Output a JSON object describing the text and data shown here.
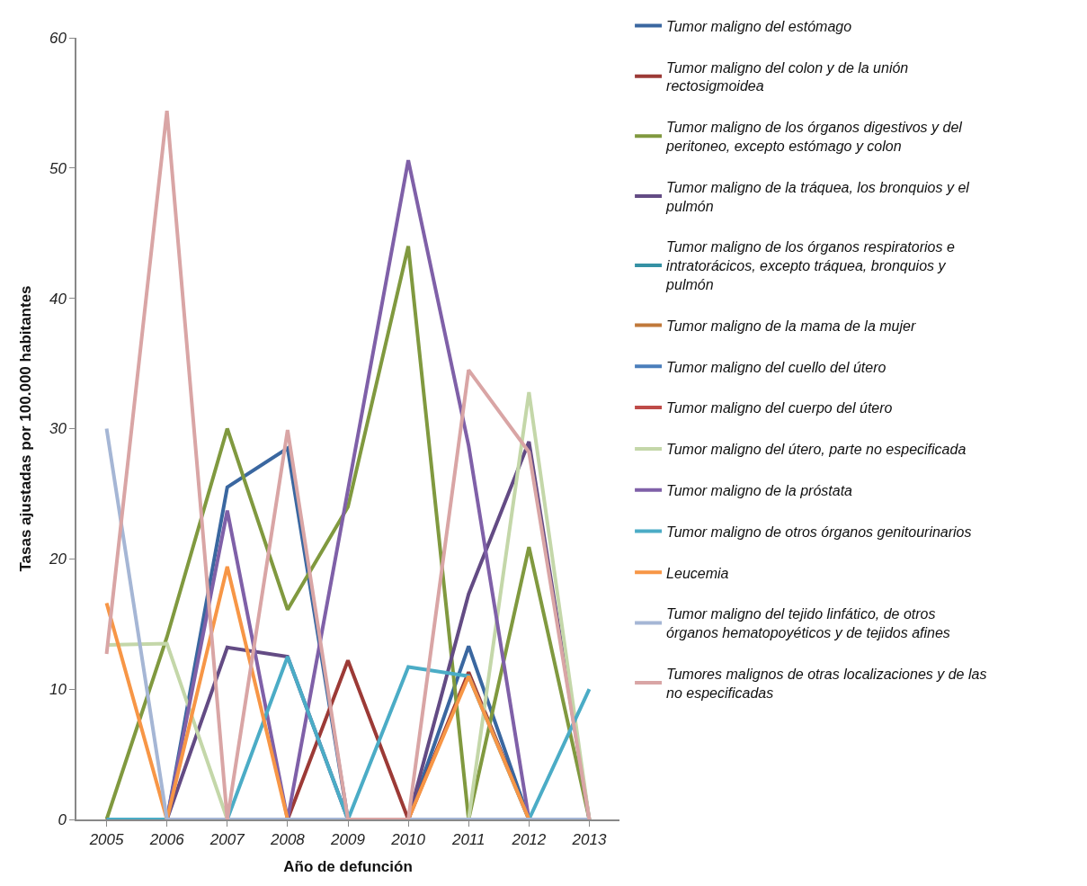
{
  "chart_data": {
    "type": "line",
    "xlabel": "Año de defunción",
    "ylabel": "Tasas ajustadas por 100.000 habitantes",
    "x": [
      2005,
      2006,
      2007,
      2008,
      2009,
      2010,
      2011,
      2012,
      2013
    ],
    "xlim": [
      2004.5,
      2013.5
    ],
    "xticks": [
      2005,
      2006,
      2007,
      2008,
      2009,
      2010,
      2011,
      2012,
      2013
    ],
    "ylim": [
      0,
      60
    ],
    "yticks": [
      0,
      10,
      20,
      30,
      40,
      50,
      60
    ],
    "legend": "right",
    "marker": "none",
    "line_style": "solid",
    "series": [
      {
        "name": "Tumor maligno del estómago",
        "color": "#3a67a0",
        "values": [
          0,
          0,
          25.5,
          28.5,
          0,
          0,
          13.3,
          0,
          0
        ]
      },
      {
        "name": "Tumor maligno del colon y de la unión rectosigmoidea",
        "color": "#9c3a36",
        "values": [
          0,
          0,
          0,
          0,
          12.2,
          0,
          11.3,
          0,
          0
        ]
      },
      {
        "name": "Tumor maligno de los órganos digestivos y del peritoneo, excepto estómago y colon",
        "color": "#80993f",
        "values": [
          0,
          14,
          30,
          16.1,
          24,
          44,
          0,
          20.9,
          0
        ]
      },
      {
        "name": "Tumor maligno de la tráquea, los bronquios y el pulmón",
        "color": "#634b84",
        "values": [
          0,
          0,
          13.2,
          12.5,
          0,
          0,
          17.3,
          29,
          0
        ]
      },
      {
        "name": "Tumor maligno de los órganos respiratorios e intratorácicos, excepto tráquea, bronquios y pulmón",
        "color": "#3591a4",
        "values": [
          null,
          null,
          null,
          null,
          null,
          null,
          null,
          null,
          null
        ]
      },
      {
        "name": "Tumor maligno de la mama de la mujer",
        "color": "#c0793a",
        "values": [
          null,
          null,
          null,
          null,
          null,
          null,
          null,
          null,
          null
        ]
      },
      {
        "name": "Tumor maligno del cuello del útero",
        "color": "#4a7ebb",
        "values": [
          null,
          null,
          null,
          null,
          null,
          null,
          null,
          null,
          null
        ]
      },
      {
        "name": "Tumor maligno del cuerpo del útero",
        "color": "#be4b48",
        "values": [
          null,
          null,
          null,
          null,
          null,
          null,
          null,
          null,
          null
        ]
      },
      {
        "name": "Tumor maligno del útero, parte no especificada",
        "color": "#c4d7a9",
        "values": [
          13.4,
          13.5,
          0,
          0,
          0,
          0,
          0,
          32.8,
          0
        ]
      },
      {
        "name": "Tumor maligno de la próstata",
        "color": "#7f60a8",
        "values": [
          0,
          0,
          23.7,
          0,
          25.3,
          50.6,
          28.7,
          0,
          0
        ]
      },
      {
        "name": "Tumor maligno de otros órganos genitourinarios",
        "color": "#4bacc6",
        "values": [
          0,
          0,
          0,
          12.5,
          0,
          11.7,
          11,
          0,
          10
        ]
      },
      {
        "name": "Leucemia",
        "color": "#f79646",
        "values": [
          16.6,
          0,
          19.4,
          0,
          0,
          0,
          11,
          0,
          0
        ]
      },
      {
        "name": "Tumor maligno del tejido linfático, de otros órganos hematopoyéticos y de tejidos afines",
        "color": "#a5b6d5",
        "values": [
          30,
          0,
          0,
          0,
          0,
          0,
          0,
          0,
          0
        ]
      },
      {
        "name": "Tumores malignos de otras localizaciones y de las no especificadas",
        "color": "#d9a5a5",
        "values": [
          12.7,
          54.4,
          0,
          29.9,
          0,
          0,
          34.5,
          28.2,
          0
        ]
      }
    ]
  }
}
